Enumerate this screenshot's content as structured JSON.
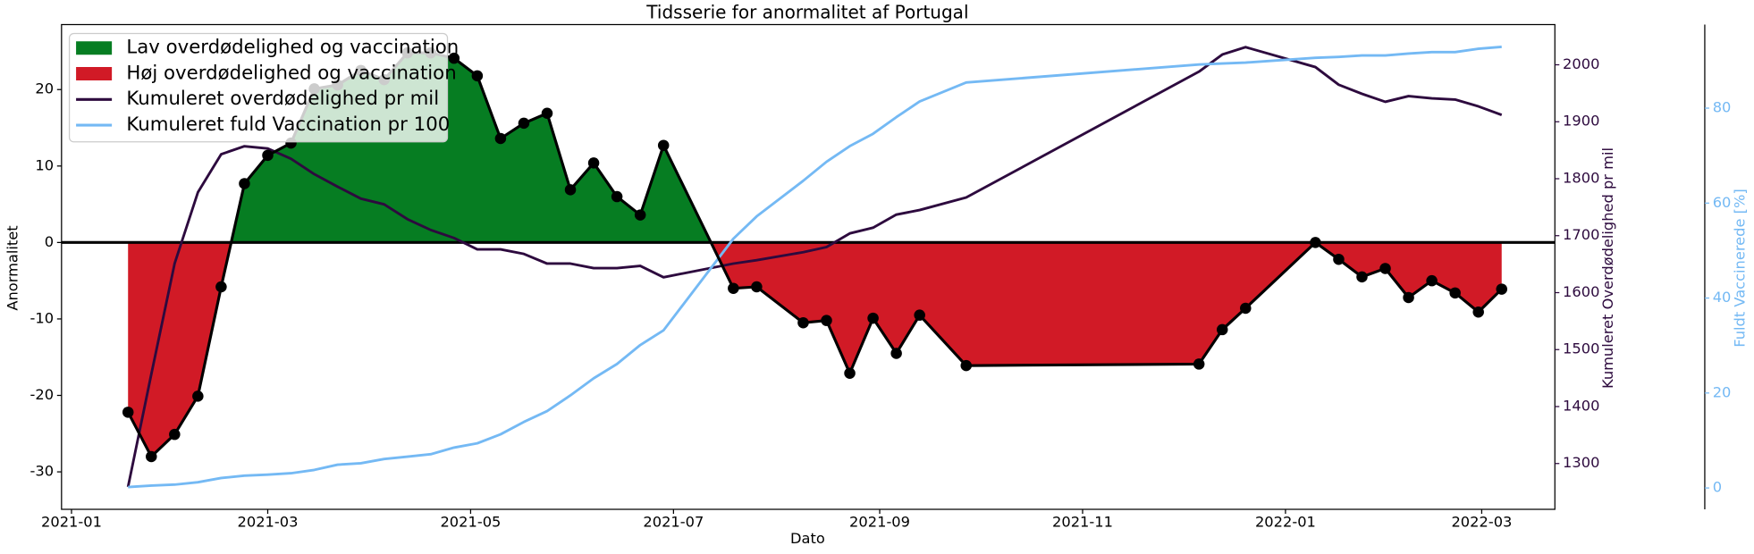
{
  "chart_data": {
    "type": "line",
    "title": "Tidsserie for anormalitet af Portugal",
    "xlabel": "Dato",
    "ylabel": "Anormalitet",
    "y2label": "Kumuleret Overdødelighed pr mil",
    "y3label": "Fuldt Vaccinerede [%]",
    "x": [
      17,
      24,
      31,
      38,
      45,
      52,
      59,
      66,
      73,
      80,
      87,
      94,
      101,
      108,
      115,
      122,
      129,
      136,
      143,
      150,
      157,
      164,
      171,
      178,
      199,
      206,
      220,
      227,
      234,
      241,
      248,
      255,
      269,
      339,
      346,
      353,
      374,
      381,
      388,
      395,
      402,
      409,
      416,
      423,
      430
    ],
    "xlim": [
      -3,
      446
    ],
    "xticks": [
      {
        "value": 0,
        "label": "2021-01"
      },
      {
        "value": 59,
        "label": "2021-03"
      },
      {
        "value": 120,
        "label": "2021-05"
      },
      {
        "value": 181,
        "label": "2021-07"
      },
      {
        "value": 243,
        "label": "2021-09"
      },
      {
        "value": 304,
        "label": "2021-11"
      },
      {
        "value": 365,
        "label": "2022-01"
      },
      {
        "value": 424,
        "label": "2022-03"
      }
    ],
    "ylim": [
      -34.9,
      28.5
    ],
    "yticks": [
      -30,
      -20,
      -10,
      0,
      10,
      20
    ],
    "y2lim": [
      1219.6,
      2070.6
    ],
    "y2ticks": [
      1300,
      1400,
      1500,
      1600,
      1700,
      1800,
      1900,
      2000
    ],
    "y3lim": [
      -4.5,
      97.6
    ],
    "y3ticks": [
      0,
      20,
      40,
      60,
      80
    ],
    "hline": 0,
    "fill_above": {
      "name": "Lav overdødelighed og vaccination",
      "color": "#067d22"
    },
    "fill_below": {
      "name": "Høj overdødelighed og vaccination",
      "color": "#d11a26"
    },
    "series": [
      {
        "color": "#000000",
        "markers": true,
        "values": [
          -22.2,
          -28.0,
          -25.1,
          -20.1,
          -5.8,
          7.7,
          11.4,
          13.0,
          20.1,
          20.6,
          22.5,
          21.3,
          24.8,
          24.8,
          24.1,
          21.8,
          13.6,
          15.6,
          16.9,
          6.9,
          10.4,
          6.0,
          3.6,
          12.7,
          -6.0,
          -5.8,
          -10.5,
          -10.2,
          -17.1,
          -9.9,
          -14.5,
          -9.5,
          -16.1,
          -15.9,
          -11.4,
          -8.6,
          0,
          -2.2,
          -4.5,
          -3.4,
          -7.2,
          -5.0,
          -6.6,
          -9.1,
          -6.1
        ]
      },
      {
        "name": "Kumuleret overdødelighed pr mil",
        "color": "#2d0a3e",
        "axis": "y2",
        "values": [
          1259,
          1457,
          1651,
          1776,
          1843,
          1857,
          1853,
          1835,
          1808,
          1786,
          1765,
          1755,
          1729,
          1710,
          1696,
          1676,
          1676,
          1668,
          1651,
          1651,
          1643,
          1643,
          1647,
          1627,
          1651,
          1657,
          1671,
          1680,
          1704,
          1714,
          1737,
          1745,
          1767,
          1988,
          2018,
          2031,
          1996,
          1965,
          1949,
          1935,
          1945,
          1941,
          1939,
          1927,
          1912
        ]
      },
      {
        "name": "Kumuleret fuld Vaccination pr 100",
        "color": "#74b9f4",
        "axis": "y3",
        "values": [
          0.2,
          0.5,
          0.7,
          1.2,
          2.1,
          2.6,
          2.8,
          3.1,
          3.8,
          4.9,
          5.2,
          6.1,
          6.6,
          7.1,
          8.5,
          9.4,
          11.3,
          13.9,
          16.2,
          19.5,
          23.1,
          26.1,
          30.1,
          33.2,
          52.5,
          57.2,
          64.7,
          68.7,
          72.0,
          74.6,
          78.1,
          81.4,
          85.4,
          89.2,
          89.4,
          89.6,
          90.6,
          90.8,
          91.1,
          91.1,
          91.5,
          91.8,
          91.8,
          92.5,
          92.9
        ]
      }
    ],
    "legend": "upper left"
  }
}
